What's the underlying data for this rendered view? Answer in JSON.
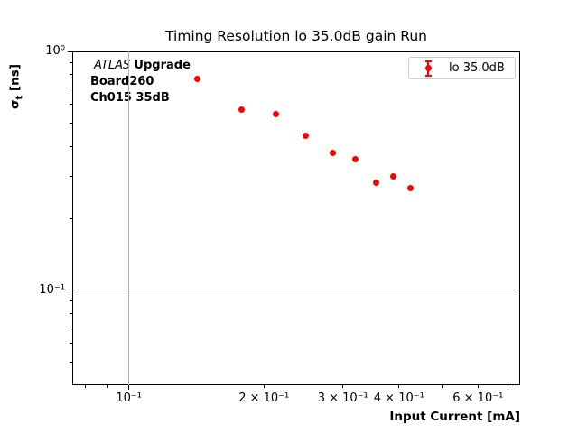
{
  "annotation": {
    "experiment": "ATLAS",
    "experiment_suffix": "Upgrade",
    "board": "Board260",
    "channel": "Ch015 35dB"
  },
  "colors": {
    "marker": "#ff0000",
    "grid": "#b0b0b0",
    "spine": "#000000",
    "legend_border": "#cccccc"
  },
  "chart_data": {
    "type": "scatter",
    "title": "Timing Resolution lo 35.0dB gain Run",
    "xlabel": "Input Current [mA]",
    "ylabel": "sigma_t [ns]",
    "ylabel_parts": {
      "symbol": "σ",
      "sub": "t",
      "unit": " [ns]"
    },
    "xscale": "log",
    "yscale": "log",
    "xlim": [
      0.0748,
      0.745
    ],
    "ylim": [
      0.04,
      1.0
    ],
    "grid": {
      "x": [
        0.1
      ],
      "y": [
        0.1
      ]
    },
    "legend_position": "upper right",
    "series": [
      {
        "name": "lo 35.0dB",
        "color": "#ff0000",
        "marker": "errorbar-dot",
        "x": [
          0.142,
          0.178,
          0.213,
          0.248,
          0.285,
          0.32,
          0.355,
          0.389,
          0.425
        ],
        "y": [
          0.764,
          0.57,
          0.545,
          0.442,
          0.375,
          0.355,
          0.282,
          0.3,
          0.268
        ]
      }
    ],
    "xticks": {
      "major": [
        {
          "value": 0.1,
          "label": "10⁻¹"
        }
      ],
      "minor": [
        {
          "value": 0.08
        },
        {
          "value": 0.09
        },
        {
          "value": 0.2,
          "label": "2 × 10⁻¹"
        },
        {
          "value": 0.3,
          "label": "3 × 10⁻¹"
        },
        {
          "value": 0.4,
          "label": "4 × 10⁻¹"
        },
        {
          "value": 0.5
        },
        {
          "value": 0.6,
          "label": "6 × 10⁻¹"
        },
        {
          "value": 0.7
        }
      ]
    },
    "yticks": {
      "major": [
        {
          "value": 1.0,
          "label": "10⁰"
        },
        {
          "value": 0.1,
          "label": "10⁻¹"
        }
      ],
      "minor": [
        {
          "value": 0.9
        },
        {
          "value": 0.8
        },
        {
          "value": 0.7
        },
        {
          "value": 0.6
        },
        {
          "value": 0.5
        },
        {
          "value": 0.4
        },
        {
          "value": 0.3
        },
        {
          "value": 0.2
        },
        {
          "value": 0.09
        },
        {
          "value": 0.08
        },
        {
          "value": 0.07
        },
        {
          "value": 0.06
        },
        {
          "value": 0.05
        }
      ]
    }
  }
}
